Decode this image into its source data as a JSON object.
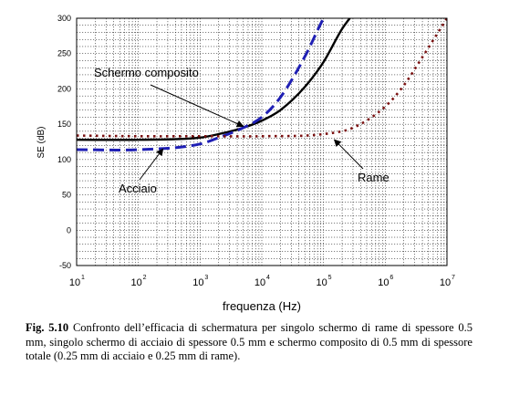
{
  "chart_data": {
    "type": "line",
    "xscale": "log",
    "xlim": [
      10,
      10000000
    ],
    "ylim": [
      -50,
      300
    ],
    "xticks": [
      {
        "base": "10",
        "exp": "1"
      },
      {
        "base": "10",
        "exp": "2"
      },
      {
        "base": "10",
        "exp": "3"
      },
      {
        "base": "10",
        "exp": "4"
      },
      {
        "base": "10",
        "exp": "5"
      },
      {
        "base": "10",
        "exp": "6"
      },
      {
        "base": "10",
        "exp": "7"
      }
    ],
    "yticks": [
      "-50",
      "0",
      "50",
      "100",
      "150",
      "200",
      "250",
      "300"
    ],
    "xlabel": "frequenza (Hz)",
    "ylabel": "SE (dB)",
    "grid": true,
    "series": [
      {
        "name": "Schermo composito",
        "color": "#000000",
        "style": "solid",
        "x": [
          10,
          100,
          1000,
          2000,
          5000,
          10000,
          20000,
          50000,
          100000,
          200000,
          300000
        ],
        "y": [
          128,
          128,
          131,
          136,
          145,
          155,
          170,
          203,
          238,
          285,
          306
        ]
      },
      {
        "name": "Acciaio",
        "color": "#1f1fb4",
        "style": "dashed",
        "x": [
          10,
          100,
          1000,
          2000,
          5000,
          10000,
          20000,
          50000,
          100000,
          120000
        ],
        "y": [
          114,
          114,
          122,
          131,
          145,
          160,
          188,
          246,
          300,
          312
        ]
      },
      {
        "name": "Rame",
        "color": "#7a1010",
        "style": "dotted",
        "x": [
          10,
          100,
          1000,
          10000,
          100000,
          300000,
          1000000,
          2000000,
          4000000,
          10000000
        ],
        "y": [
          134,
          133,
          133,
          133,
          136,
          145,
          175,
          205,
          245,
          300
        ]
      }
    ],
    "annotations": [
      {
        "text": "Schermo composito",
        "target_x": 5000,
        "target_y": 147
      },
      {
        "text": "Acciaio",
        "target_x": 250,
        "target_y": 115
      },
      {
        "text": "Rame",
        "target_x": 150000,
        "target_y": 128
      }
    ]
  },
  "caption": {
    "label": "Fig. 5.10",
    "text": "Confronto dell’efficacia di schermatura per singolo schermo di rame di spessore 0.5 mm, singolo schermo di acciaio di spessore 0.5 mm e schermo composito di 0.5 mm di spessore totale (0.25 mm di acciaio e 0.25 mm di rame)."
  }
}
